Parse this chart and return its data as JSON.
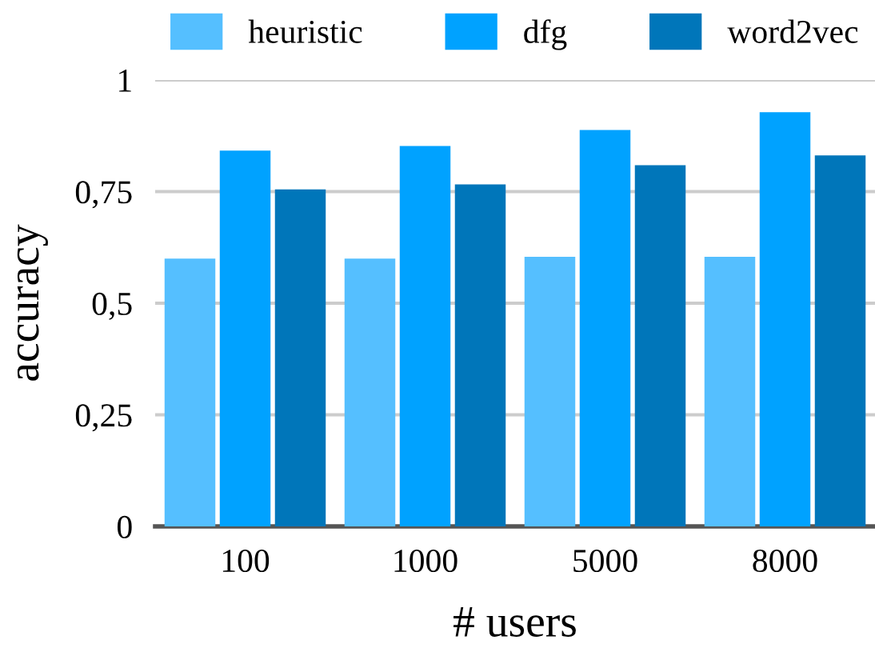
{
  "chart_data": {
    "type": "bar",
    "xlabel": "# users",
    "ylabel": "accuracy",
    "categories": [
      "100",
      "1000",
      "5000",
      "8000"
    ],
    "series": [
      {
        "name": "heuristic",
        "color": "#55bfff",
        "values": [
          0.6,
          0.6,
          0.604,
          0.604
        ]
      },
      {
        "name": "dfg",
        "color": "#00a2ff",
        "values": [
          0.842,
          0.852,
          0.888,
          0.928
        ]
      },
      {
        "name": "word2vec",
        "color": "#0076ba",
        "values": [
          0.755,
          0.766,
          0.809,
          0.831
        ]
      }
    ],
    "ylim": [
      0,
      1
    ],
    "yticks": [
      0,
      {
        "value": 0.25,
        "label": "0,25"
      },
      {
        "value": 0.5,
        "label": "0,5"
      },
      {
        "value": 0.75,
        "label": "0,75"
      },
      1
    ],
    "grid": "y",
    "legend": "top"
  }
}
